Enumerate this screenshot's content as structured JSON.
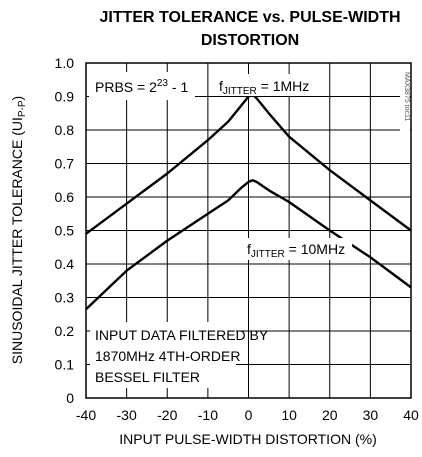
{
  "chart_data": {
    "type": "line",
    "title_line1": "JITTER TOLERANCE vs. PULSE-WIDTH",
    "title_line2": "DISTORTION",
    "xlabel": "INPUT PULSE-WIDTH DISTORTION (%)",
    "ylabel_main": "SINUSOIDAL JITTER TOLERANCE (UI",
    "ylabel_sub": "P-P",
    "ylabel_end": ")",
    "xlim": [
      -40,
      40
    ],
    "ylim": [
      0,
      1.0
    ],
    "x_ticks": [
      "-40",
      "-30",
      "-20",
      "-10",
      "0",
      "10",
      "20",
      "30",
      "40"
    ],
    "y_ticks": [
      "0",
      "0.1",
      "0.2",
      "0.3",
      "0.4",
      "0.5",
      "0.6",
      "0.7",
      "0.8",
      "0.9",
      "1.0"
    ],
    "grid": true,
    "series": [
      {
        "label_main": "f",
        "label_sub": "JITTER",
        "label_value": " = 1MHz",
        "x": [
          -40,
          -30,
          -20,
          -10,
          -5,
          -2,
          0,
          1,
          2,
          5,
          10,
          20,
          30,
          40
        ],
        "y": [
          0.49,
          0.58,
          0.67,
          0.77,
          0.825,
          0.87,
          0.9,
          0.905,
          0.895,
          0.85,
          0.78,
          0.68,
          0.59,
          0.5
        ]
      },
      {
        "label_main": "f",
        "label_sub": "JITTER",
        "label_value": " = 10MHz",
        "x": [
          -40,
          -30,
          -20,
          -10,
          -5,
          -2,
          0,
          1,
          2,
          5,
          10,
          20,
          30,
          40
        ],
        "y": [
          0.265,
          0.38,
          0.47,
          0.55,
          0.59,
          0.625,
          0.645,
          0.65,
          0.645,
          0.62,
          0.585,
          0.5,
          0.42,
          0.33
        ]
      }
    ],
    "annotations": {
      "prbs_main": "PRBS = 2",
      "prbs_sup": "23",
      "prbs_end": " - 1",
      "filter_line1": "INPUT DATA FILTERED BY",
      "filter_line2": "1870MHz 4TH-ORDER",
      "filter_line3": "BESSEL FILTER",
      "watermark": "MAX3875 toc11"
    }
  }
}
